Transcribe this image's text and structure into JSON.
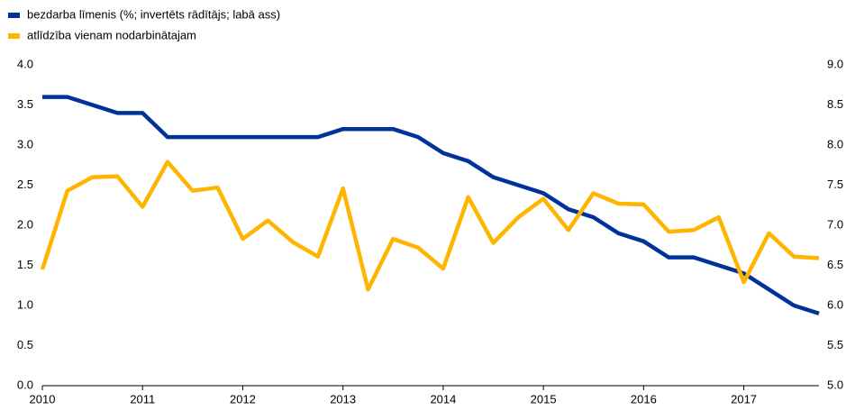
{
  "chart_data": {
    "type": "line",
    "categories": [
      "2010",
      null,
      null,
      null,
      "2011",
      null,
      null,
      null,
      "2012",
      null,
      null,
      null,
      "2013",
      null,
      null,
      null,
      "2014",
      null,
      null,
      null,
      "2015",
      null,
      null,
      null,
      "2016",
      null,
      null,
      null,
      "2017",
      null,
      null,
      null
    ],
    "series": [
      {
        "name": "bezdarba līmenis (%; invertēts rādītājs; labā ass)",
        "color": "#003299",
        "axis": "y2",
        "values": [
          8.6,
          8.6,
          8.5,
          8.4,
          8.4,
          8.1,
          8.1,
          8.1,
          8.1,
          8.1,
          8.1,
          8.1,
          8.2,
          8.2,
          8.2,
          8.1,
          7.9,
          7.8,
          7.6,
          7.5,
          7.4,
          7.2,
          7.1,
          6.9,
          6.8,
          6.6,
          6.6,
          6.5,
          6.4,
          6.2,
          6.0,
          5.9
        ]
      },
      {
        "name": "atlīdzība vienam nodarbinātajam",
        "color": "#ffb400",
        "values": [
          1.45,
          2.43,
          2.6,
          2.61,
          2.23,
          2.79,
          2.43,
          2.47,
          1.83,
          2.06,
          1.79,
          1.61,
          2.46,
          1.2,
          1.83,
          1.72,
          1.46,
          2.35,
          1.78,
          2.1,
          2.33,
          1.94,
          2.4,
          2.27,
          2.26,
          1.92,
          1.94,
          2.1,
          1.29,
          1.9,
          1.61,
          1.59
        ]
      }
    ],
    "ylim": [
      0,
      4
    ],
    "yticks": [
      {
        "value": 0,
        "label": "0.0"
      },
      0.5,
      {
        "value": 1,
        "label": "1.0"
      },
      1.5,
      {
        "value": 2,
        "label": "2.0"
      },
      2.5,
      {
        "value": 3,
        "label": "3.0"
      },
      3.5,
      {
        "value": 4,
        "label": "4.0"
      }
    ],
    "y2lim": [
      5,
      9
    ],
    "y2ticks": [
      {
        "value": 5,
        "label": "5.0"
      },
      5.5,
      {
        "value": 6,
        "label": "6.0"
      },
      6.5,
      {
        "value": 7,
        "label": "7.0"
      },
      7.5,
      {
        "value": 8,
        "label": "8.0"
      },
      8.5,
      {
        "value": 9,
        "label": "9.0"
      }
    ],
    "legend": "top-left"
  }
}
